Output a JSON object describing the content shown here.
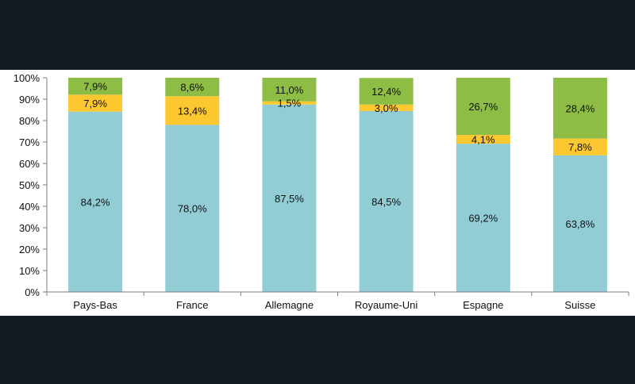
{
  "colors": {
    "background": "#131a22",
    "panel": "#ffffff",
    "series_bottom": "#92cdd6",
    "series_middle": "#fdc82f",
    "series_top": "#8dbd45",
    "axis": "#7f7f7f"
  },
  "chart_data": {
    "type": "bar",
    "stacked": true,
    "percent": true,
    "categories": [
      "Pays-Bas",
      "France",
      "Allemagne",
      "Royaume-Uni",
      "Espagne",
      "Suisse"
    ],
    "series": [
      {
        "values": [
          84.2,
          78.0,
          87.5,
          84.5,
          69.2,
          63.8
        ],
        "labels": [
          "84,2%",
          "78,0%",
          "87,5%",
          "84,5%",
          "69,2%",
          "63,8%"
        ],
        "color": "#92cdd6"
      },
      {
        "values": [
          7.9,
          13.4,
          1.5,
          3.0,
          4.1,
          7.8
        ],
        "labels": [
          "7,9%",
          "13,4%",
          "1,5%",
          "3,0%",
          "4,1%",
          "7,8%"
        ],
        "color": "#fdc82f"
      },
      {
        "values": [
          7.9,
          8.6,
          11.0,
          12.4,
          26.7,
          28.4
        ],
        "labels": [
          "7,9%",
          "8,6%",
          "11,0%",
          "12,4%",
          "26,7%",
          "28,4%"
        ],
        "color": "#8dbd45"
      }
    ],
    "ylim": [
      0,
      100
    ],
    "yticks": [
      "0%",
      "10%",
      "20%",
      "30%",
      "40%",
      "50%",
      "60%",
      "70%",
      "80%",
      "90%",
      "100%"
    ],
    "grid": false,
    "legend": "none"
  }
}
